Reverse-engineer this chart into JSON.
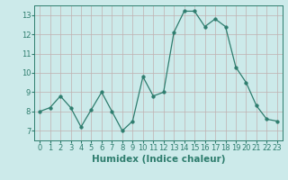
{
  "xlabel": "Humidex (Indice chaleur)",
  "x": [
    0,
    1,
    2,
    3,
    4,
    5,
    6,
    7,
    8,
    9,
    10,
    11,
    12,
    13,
    14,
    15,
    16,
    17,
    18,
    19,
    20,
    21,
    22,
    23
  ],
  "y": [
    8.0,
    8.2,
    8.8,
    8.2,
    7.2,
    8.1,
    9.0,
    8.0,
    7.0,
    7.5,
    9.8,
    8.8,
    9.0,
    12.1,
    13.2,
    13.2,
    12.4,
    12.8,
    12.4,
    10.3,
    9.5,
    8.3,
    7.6,
    7.5
  ],
  "ylim": [
    6.5,
    13.5
  ],
  "xlim": [
    -0.5,
    23.5
  ],
  "yticks": [
    7,
    8,
    9,
    10,
    11,
    12,
    13
  ],
  "xticks": [
    0,
    1,
    2,
    3,
    4,
    5,
    6,
    7,
    8,
    9,
    10,
    11,
    12,
    13,
    14,
    15,
    16,
    17,
    18,
    19,
    20,
    21,
    22,
    23
  ],
  "line_color": "#2e7d6e",
  "marker_size": 2.5,
  "bg_color": "#cceaea",
  "grid_major_color": "#c0b0b0",
  "grid_minor_color": "#ddd0d0",
  "tick_fontsize": 6,
  "label_fontsize": 7.5
}
